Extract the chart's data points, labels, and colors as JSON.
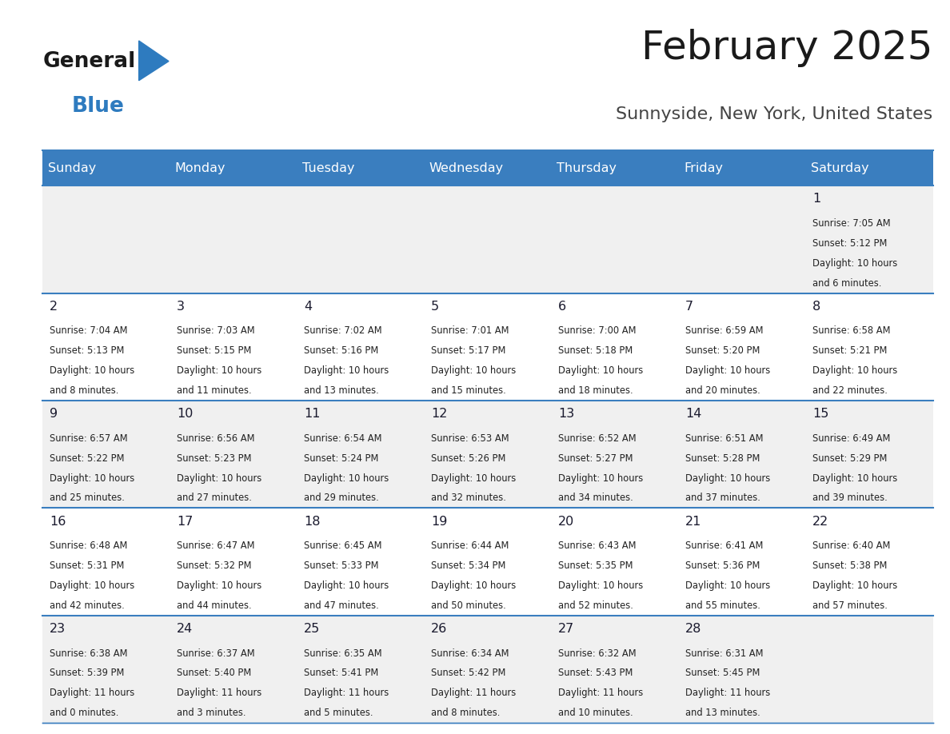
{
  "title": "February 2025",
  "subtitle": "Sunnyside, New York, United States",
  "days_of_week": [
    "Sunday",
    "Monday",
    "Tuesday",
    "Wednesday",
    "Thursday",
    "Friday",
    "Saturday"
  ],
  "header_bg": "#3a7ebf",
  "header_text": "#ffffff",
  "row_bg_odd": "#f0f0f0",
  "row_bg_even": "#ffffff",
  "cell_border": "#3a7ebf",
  "day_number_color": "#1a1a2e",
  "info_text_color": "#222222",
  "title_color": "#1a1a1a",
  "subtitle_color": "#444444",
  "logo_general_color": "#1a1a1a",
  "logo_blue_color": "#2e7bbf",
  "calendar_data": [
    [
      null,
      null,
      null,
      null,
      null,
      null,
      {
        "day": 1,
        "sunrise": "7:05 AM",
        "sunset": "5:12 PM",
        "daylight_hours": 10,
        "daylight_mins": 6
      }
    ],
    [
      {
        "day": 2,
        "sunrise": "7:04 AM",
        "sunset": "5:13 PM",
        "daylight_hours": 10,
        "daylight_mins": 8
      },
      {
        "day": 3,
        "sunrise": "7:03 AM",
        "sunset": "5:15 PM",
        "daylight_hours": 10,
        "daylight_mins": 11
      },
      {
        "day": 4,
        "sunrise": "7:02 AM",
        "sunset": "5:16 PM",
        "daylight_hours": 10,
        "daylight_mins": 13
      },
      {
        "day": 5,
        "sunrise": "7:01 AM",
        "sunset": "5:17 PM",
        "daylight_hours": 10,
        "daylight_mins": 15
      },
      {
        "day": 6,
        "sunrise": "7:00 AM",
        "sunset": "5:18 PM",
        "daylight_hours": 10,
        "daylight_mins": 18
      },
      {
        "day": 7,
        "sunrise": "6:59 AM",
        "sunset": "5:20 PM",
        "daylight_hours": 10,
        "daylight_mins": 20
      },
      {
        "day": 8,
        "sunrise": "6:58 AM",
        "sunset": "5:21 PM",
        "daylight_hours": 10,
        "daylight_mins": 22
      }
    ],
    [
      {
        "day": 9,
        "sunrise": "6:57 AM",
        "sunset": "5:22 PM",
        "daylight_hours": 10,
        "daylight_mins": 25
      },
      {
        "day": 10,
        "sunrise": "6:56 AM",
        "sunset": "5:23 PM",
        "daylight_hours": 10,
        "daylight_mins": 27
      },
      {
        "day": 11,
        "sunrise": "6:54 AM",
        "sunset": "5:24 PM",
        "daylight_hours": 10,
        "daylight_mins": 29
      },
      {
        "day": 12,
        "sunrise": "6:53 AM",
        "sunset": "5:26 PM",
        "daylight_hours": 10,
        "daylight_mins": 32
      },
      {
        "day": 13,
        "sunrise": "6:52 AM",
        "sunset": "5:27 PM",
        "daylight_hours": 10,
        "daylight_mins": 34
      },
      {
        "day": 14,
        "sunrise": "6:51 AM",
        "sunset": "5:28 PM",
        "daylight_hours": 10,
        "daylight_mins": 37
      },
      {
        "day": 15,
        "sunrise": "6:49 AM",
        "sunset": "5:29 PM",
        "daylight_hours": 10,
        "daylight_mins": 39
      }
    ],
    [
      {
        "day": 16,
        "sunrise": "6:48 AM",
        "sunset": "5:31 PM",
        "daylight_hours": 10,
        "daylight_mins": 42
      },
      {
        "day": 17,
        "sunrise": "6:47 AM",
        "sunset": "5:32 PM",
        "daylight_hours": 10,
        "daylight_mins": 44
      },
      {
        "day": 18,
        "sunrise": "6:45 AM",
        "sunset": "5:33 PM",
        "daylight_hours": 10,
        "daylight_mins": 47
      },
      {
        "day": 19,
        "sunrise": "6:44 AM",
        "sunset": "5:34 PM",
        "daylight_hours": 10,
        "daylight_mins": 50
      },
      {
        "day": 20,
        "sunrise": "6:43 AM",
        "sunset": "5:35 PM",
        "daylight_hours": 10,
        "daylight_mins": 52
      },
      {
        "day": 21,
        "sunrise": "6:41 AM",
        "sunset": "5:36 PM",
        "daylight_hours": 10,
        "daylight_mins": 55
      },
      {
        "day": 22,
        "sunrise": "6:40 AM",
        "sunset": "5:38 PM",
        "daylight_hours": 10,
        "daylight_mins": 57
      }
    ],
    [
      {
        "day": 23,
        "sunrise": "6:38 AM",
        "sunset": "5:39 PM",
        "daylight_hours": 11,
        "daylight_mins": 0
      },
      {
        "day": 24,
        "sunrise": "6:37 AM",
        "sunset": "5:40 PM",
        "daylight_hours": 11,
        "daylight_mins": 3
      },
      {
        "day": 25,
        "sunrise": "6:35 AM",
        "sunset": "5:41 PM",
        "daylight_hours": 11,
        "daylight_mins": 5
      },
      {
        "day": 26,
        "sunrise": "6:34 AM",
        "sunset": "5:42 PM",
        "daylight_hours": 11,
        "daylight_mins": 8
      },
      {
        "day": 27,
        "sunrise": "6:32 AM",
        "sunset": "5:43 PM",
        "daylight_hours": 11,
        "daylight_mins": 10
      },
      {
        "day": 28,
        "sunrise": "6:31 AM",
        "sunset": "5:45 PM",
        "daylight_hours": 11,
        "daylight_mins": 13
      },
      null
    ]
  ]
}
